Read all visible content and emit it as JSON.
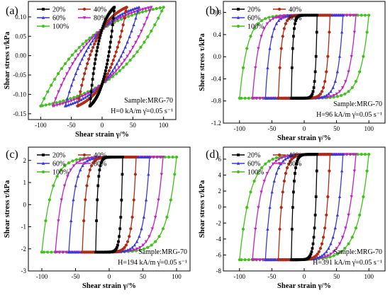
{
  "chart_data": [
    {
      "panel": "(a)",
      "type": "line",
      "xlabel": "Shear strain γ/%",
      "ylabel": "Shear stress τ/kPa",
      "xlim": [
        -120,
        120
      ],
      "ylim": [
        -0.165,
        0.14
      ],
      "xticks": [
        -100,
        -50,
        0,
        50,
        100
      ],
      "yticks": [
        -0.15,
        -0.1,
        -0.05,
        0.0,
        0.05,
        0.1
      ],
      "ytick_labels": [
        "-0.15",
        "-0.10",
        "-0.05",
        "0.00",
        "0.05",
        "0.10"
      ],
      "tau_max": 0.125,
      "tau_min": -0.13,
      "sharpness": 1.25,
      "amplitudes": [
        20,
        40,
        60,
        80,
        100
      ],
      "legend": [
        "20%",
        "40%",
        "60%",
        "80%",
        "100%"
      ],
      "legend_position": "top-left",
      "annotation": [
        "Sample:MRG-70",
        "H=0 kA/m",
        "γ̇=0.05 s⁻¹"
      ],
      "annotation_position": "bottom-right"
    },
    {
      "panel": "(b)",
      "type": "line",
      "xlabel": "Shear strain γ/%",
      "ylabel": "Shear stress τ/kPa",
      "xlim": [
        -125,
        125
      ],
      "ylim": [
        -1.2,
        1.0
      ],
      "xticks": [
        -100,
        -50,
        0,
        50,
        100
      ],
      "yticks": [
        -1.2,
        -0.8,
        -0.4,
        0.0,
        0.4,
        0.8
      ],
      "ytick_labels": [
        "-1.2",
        "-0.8",
        "-0.4",
        "0.0",
        "0.4",
        "0.8"
      ],
      "tau_max": 0.75,
      "tau_min": -0.75,
      "sharpness": 8,
      "amplitudes": [
        20,
        40,
        60,
        80,
        100
      ],
      "legend": [
        "20%",
        "40%",
        "60%",
        "80%",
        "100%"
      ],
      "legend_position": "top-left",
      "annotation": [
        "Sample:MRG-70",
        "H=96 kA/m",
        "γ̇=0.05 s⁻¹"
      ],
      "annotation_position": "bottom-right"
    },
    {
      "panel": "(c)",
      "type": "line",
      "xlabel": "Shear strain γ/%",
      "ylabel": "Shear stress τ/kPa",
      "xlim": [
        -120,
        120
      ],
      "ylim": [
        -3,
        2.6
      ],
      "xticks": [
        -100,
        -50,
        0,
        50,
        100
      ],
      "yticks": [
        -3,
        -2,
        -1,
        0,
        1,
        2
      ],
      "ytick_labels": [
        "-3",
        "-2",
        "-1",
        "0",
        "1",
        "2"
      ],
      "tau_max": 2.15,
      "tau_min": -2.15,
      "sharpness": 7,
      "amplitudes": [
        20,
        40,
        60,
        80,
        100
      ],
      "legend": [
        "20%",
        "40%",
        "60%",
        "80%",
        "100%"
      ],
      "legend_position": "top-left",
      "annotation": [
        "Sample:MRG-70",
        "H=194 kA/m",
        "γ̇=0.05 s⁻¹"
      ],
      "annotation_position": "bottom-right"
    },
    {
      "panel": "(d)",
      "type": "line",
      "xlabel": "Shear strain γ/%",
      "ylabel": "Shear stress τ/kPa",
      "xlim": [
        -125,
        125
      ],
      "ylim": [
        -8,
        7.5
      ],
      "xticks": [
        -100,
        -50,
        0,
        50,
        100
      ],
      "yticks": [
        -8,
        -6,
        -4,
        -2,
        0,
        2,
        4,
        6
      ],
      "ytick_labels": [
        "-8",
        "-6",
        "-4",
        "-2",
        "0",
        "2",
        "4",
        "6"
      ],
      "tau_max": 6.6,
      "tau_min": -6.6,
      "sharpness": 6,
      "amplitudes": [
        20,
        40,
        60,
        80,
        100
      ],
      "legend": [
        "20%",
        "40%",
        "60%",
        "80%",
        "100%"
      ],
      "legend_position": "top-left",
      "annotation": [
        "Sample:MRG-70",
        "H=391 kA/m",
        "γ̇=0.05 s⁻¹"
      ],
      "annotation_position": "bottom-right"
    }
  ],
  "colors": {
    "20%": "#000000",
    "40%": "#b22a14",
    "60%": "#3b3bd6",
    "80%": "#c220c2",
    "100%": "#3fc21a"
  },
  "markers": {
    "20%": "square",
    "40%": "circle",
    "60%": "triangle",
    "80%": "triangle-down",
    "100%": "circle"
  }
}
